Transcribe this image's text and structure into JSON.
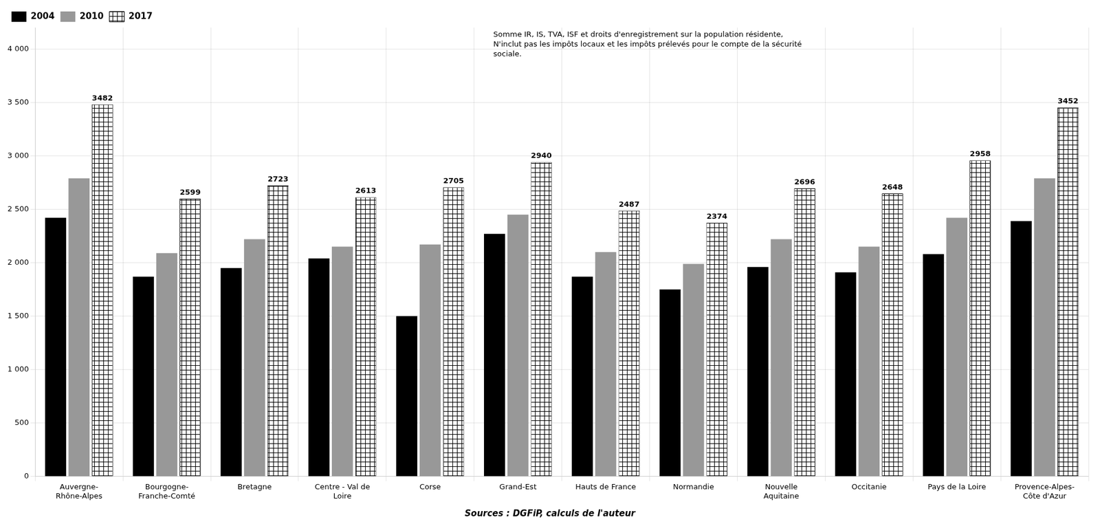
{
  "chart_data": {
    "type": "bar",
    "categories": [
      "Auvergne-\nRhône-Alpes",
      "Bourgogne-\nFranche-Comté",
      "Bretagne",
      "Centre - Val de\nLoire",
      "Corse",
      "Grand-Est",
      "Hauts de France",
      "Normandie",
      "Nouvelle\nAquitaine",
      "Occitanie",
      "Pays de la Loire",
      "Provence-Alpes-\nCôte d'Azur"
    ],
    "series": [
      {
        "name": "2004",
        "color": "#000000",
        "values": [
          2420,
          1870,
          1950,
          2040,
          1500,
          2270,
          1870,
          1750,
          1960,
          1910,
          2080,
          2390
        ]
      },
      {
        "name": "2010",
        "color": "#989898",
        "values": [
          2790,
          2090,
          2220,
          2150,
          2170,
          2450,
          2100,
          1990,
          2220,
          2150,
          2420,
          2790
        ]
      },
      {
        "name": "2017",
        "color": "#ffffff",
        "values": [
          3482,
          2599,
          2723,
          2613,
          2705,
          2940,
          2487,
          2374,
          2696,
          2648,
          2958,
          3452
        ],
        "data_labels": true
      }
    ],
    "ylim": [
      0,
      4200
    ],
    "yticks": [
      0,
      500,
      {
        "value": 1000,
        "label": "1 000"
      },
      {
        "value": 1500,
        "label": "1 500"
      },
      {
        "value": 2000,
        "label": "2 000"
      },
      {
        "value": 2500,
        "label": "2 500"
      },
      {
        "value": 3000,
        "label": "3 000"
      },
      {
        "value": 3500,
        "label": "3 500"
      },
      {
        "value": 4000,
        "label": "4 000"
      }
    ],
    "grid": true,
    "legend": "upper left",
    "annotations": [
      "Somme IR, IS, TVA, ISF et droits d'enregistrement sur la population résidente,\nN'inclut pas les impôts locaux et les impôts prélevés pour le compte de la sécurité\nsociale.",
      "Sources : DGFiP, calculs de l'auteur"
    ]
  }
}
